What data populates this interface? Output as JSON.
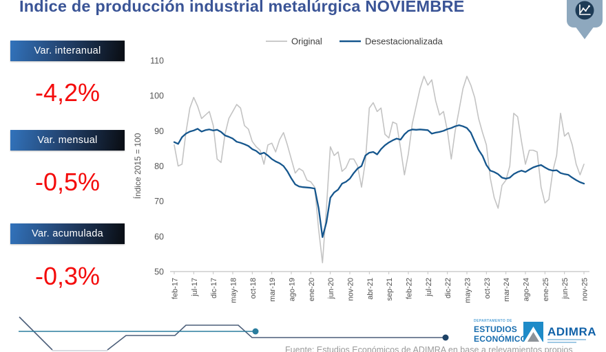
{
  "header": {
    "title": "Índice de producción industrial metalúrgica NOVIEMBRE"
  },
  "stats": [
    {
      "label": "Var. interanual",
      "value": "-4,2%"
    },
    {
      "label": "Var. mensual",
      "value": "-0,5%"
    },
    {
      "label": "Var. acumulada",
      "value": "-0,3%"
    }
  ],
  "chart_data": {
    "type": "line",
    "title": "",
    "ylabel": "Índice 2015 = 100",
    "ylim": [
      50,
      110
    ],
    "yticks": [
      50,
      60,
      70,
      80,
      90,
      100,
      110
    ],
    "grid": false,
    "legend_position": "top",
    "x_unit": "month",
    "x_start": "feb-17",
    "x_end": "nov-25",
    "n_points": 106,
    "x_tick_every": 5,
    "x_tick_labels": [
      "feb-17",
      "jul-17",
      "dic-17",
      "may-18",
      "oct-18",
      "mar-19",
      "ago-19",
      "ene-20",
      "jun-20",
      "nov-20",
      "abr-21",
      "sep-21",
      "feb-22",
      "jul-22",
      "dic-22",
      "may-23",
      "oct-23",
      "mar-24",
      "ago-24",
      "ene-25",
      "jun-25",
      "nov-25"
    ],
    "series": [
      {
        "name": "Original",
        "color": "#c3c3c3",
        "values": [
          86,
          80,
          80.5,
          89.5,
          96.5,
          99.5,
          97,
          93.5,
          94.5,
          95.5,
          91.5,
          82,
          81,
          89,
          93.5,
          95.5,
          97.5,
          96.5,
          91.5,
          90.5,
          87,
          85.5,
          84.5,
          80.5,
          86,
          86.5,
          84,
          87.5,
          89.5,
          86,
          82,
          78,
          79.3,
          78.6,
          76,
          75.5,
          74,
          62,
          52.5,
          68,
          85.5,
          83,
          84,
          78.5,
          79.5,
          82,
          82,
          80,
          74,
          81.5,
          96.5,
          98,
          95.5,
          96.5,
          89,
          88,
          92.5,
          92,
          85,
          77.5,
          83.5,
          92,
          97,
          102,
          105.5,
          103,
          104.5,
          98.5,
          94.5,
          95.5,
          90,
          82,
          90,
          96,
          102,
          105.5,
          103,
          99.5,
          93.5,
          89.5,
          86,
          76.5,
          71,
          68,
          74.5,
          76,
          80,
          95,
          94,
          87,
          80.5,
          84.5,
          84.5,
          84,
          74,
          69.5,
          70.5,
          78.5,
          83,
          95,
          88.5,
          89.5,
          86,
          80.5,
          77.5,
          80.5
        ]
      },
      {
        "name": "Desestacionalizada",
        "color": "#15568d",
        "values": [
          86.8,
          86.3,
          88.2,
          89.2,
          89.8,
          90.1,
          90.6,
          89.8,
          90.2,
          90.4,
          90.1,
          90.3,
          89.7,
          88.7,
          88.3,
          87.8,
          86.9,
          86.6,
          86.2,
          85.7,
          84.8,
          84.3,
          83.4,
          83.8,
          83.0,
          82.0,
          81.3,
          80.8,
          80.0,
          78.5,
          76.5,
          74.8,
          74.2,
          74.0,
          73.9,
          73.8,
          73.6,
          68.0,
          59.8,
          64.0,
          71.0,
          72.5,
          73.3,
          75.0,
          75.5,
          76.4,
          78.0,
          79.3,
          80.0,
          83.0,
          83.8,
          84.0,
          83.3,
          84.8,
          85.9,
          86.7,
          87.3,
          87.8,
          87.5,
          89.0,
          90.0,
          90.4,
          90.3,
          90.4,
          90.3,
          90.2,
          89.2,
          89.5,
          89.7,
          90.0,
          90.5,
          90.8,
          91.3,
          91.6,
          91.3,
          90.8,
          89.5,
          87.0,
          84.6,
          82.9,
          80.3,
          78.7,
          78.3,
          77.7,
          76.7,
          76.4,
          76.7,
          77.7,
          78.3,
          78.7,
          78.3,
          79.0,
          79.6,
          80.0,
          80.3,
          79.6,
          79.0,
          78.7,
          78.8,
          78.0,
          77.7,
          77.5,
          76.7,
          76.0,
          75.4,
          75.0
        ]
      }
    ]
  },
  "footer": {
    "dept_small": "DEPARTAMENTO DE",
    "dept_line1": "ESTUDIOS",
    "dept_line2": "ECONÓMICOS",
    "adimra_name": "ADIMRA",
    "source": "Fuente: Estudios Económicos de ADIMRA en base a relevamientos propios"
  },
  "colors": {
    "title_navy": "#3a5496",
    "value_red": "#f40b0b",
    "badge_gradient_start": "#3273bc",
    "badge_gradient_end": "#0b1018",
    "line_original": "#c3c3c3",
    "line_desestacionalizada": "#15568d",
    "deco_teal": "#2a7d9e",
    "deco_navy": "#4a5d78",
    "pin_fill": "#8ea8be",
    "pin_circle": "#1d3b56",
    "adimra_blue": "#1e8bc8"
  }
}
